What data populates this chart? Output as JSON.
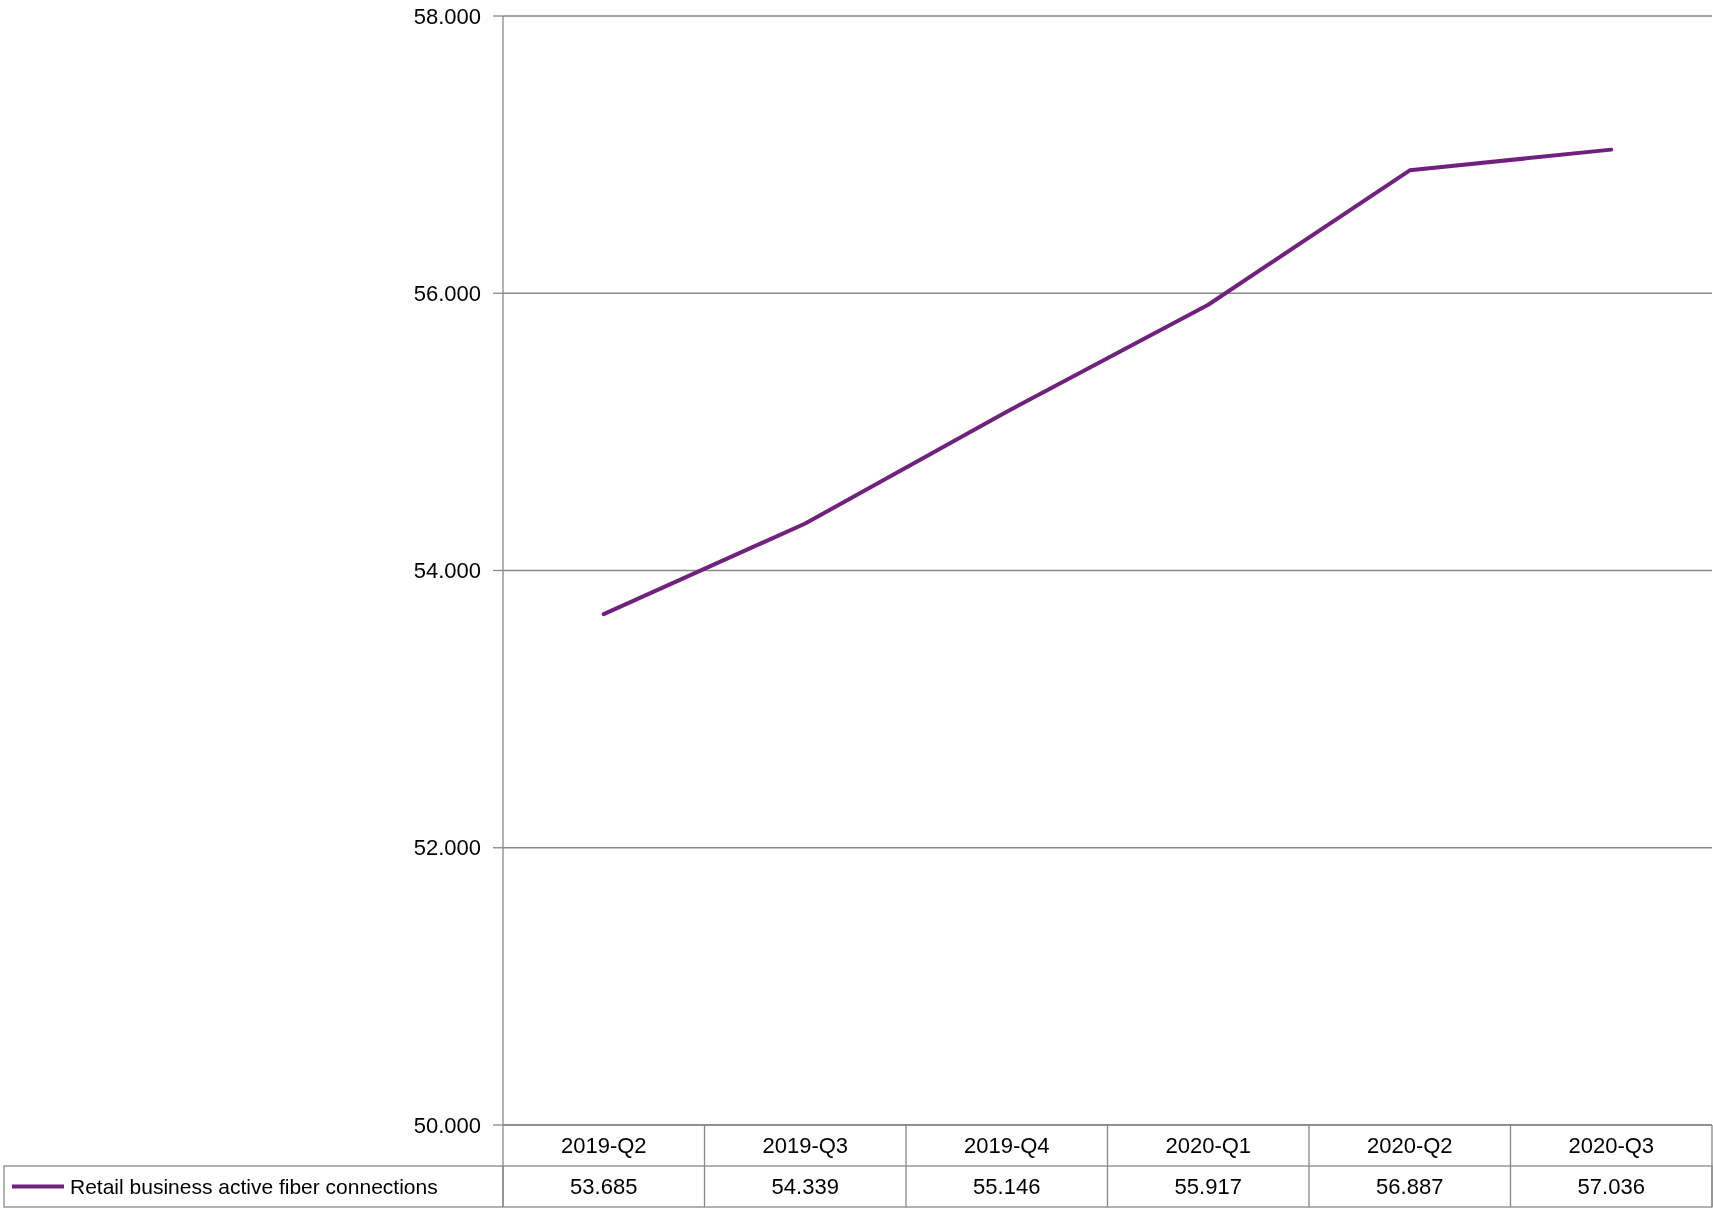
{
  "chart_data": {
    "type": "line",
    "categories": [
      "2019-Q2",
      "2019-Q3",
      "2019-Q4",
      "2020-Q1",
      "2020-Q2",
      "2020-Q3"
    ],
    "series": [
      {
        "name": "Retail business active fiber connections",
        "color": "#70207e",
        "values": [
          53.685,
          54.339,
          55.146,
          55.917,
          56.887,
          57.036
        ]
      }
    ],
    "ylim": [
      50,
      58
    ],
    "yticks": [
      {
        "value": 50,
        "label": "50.000"
      },
      {
        "value": 52,
        "label": "52.000"
      },
      {
        "value": 54,
        "label": "54.000"
      },
      {
        "value": 56,
        "label": "56.000"
      },
      {
        "value": 58,
        "label": "58.000"
      }
    ],
    "grid": "y",
    "legend": "bottom left",
    "marker": "none",
    "line_style": "solid",
    "data_labels": true
  }
}
